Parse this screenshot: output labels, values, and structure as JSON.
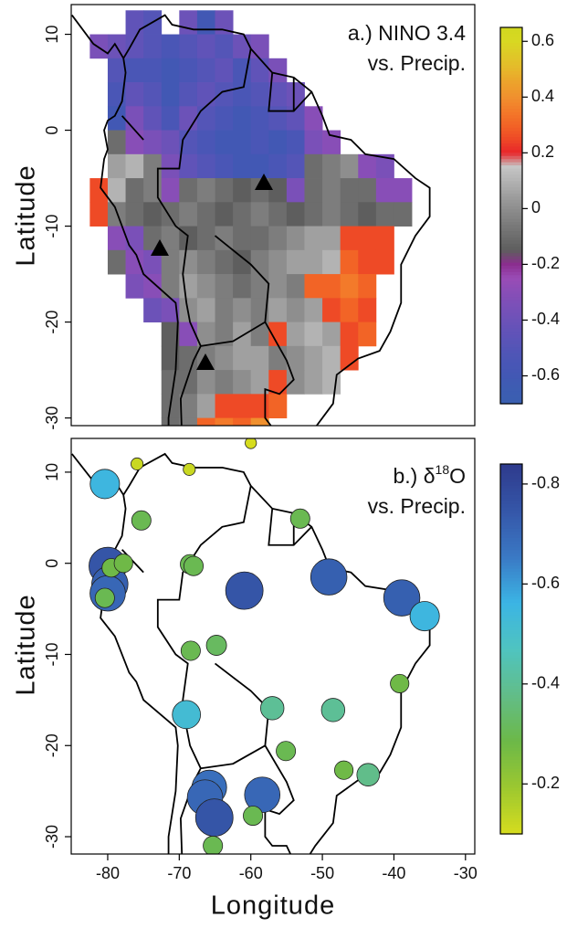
{
  "chart_data": [
    {
      "type": "heatmap",
      "title": "a.) NINO 3.4",
      "subtitle": "vs. Precip.",
      "y_label": "Latitude",
      "x": [
        -81.25,
        -78.75,
        -76.25,
        -73.75,
        -71.25,
        -68.75,
        -66.25,
        -63.75,
        -61.25,
        -58.75,
        -56.25,
        -53.75,
        -51.25,
        -48.75,
        -46.25,
        -43.75,
        -41.25,
        -38.75,
        -36.25
      ],
      "y": [
        11.25,
        8.75,
        6.25,
        3.75,
        1.25,
        -1.25,
        -3.75,
        -6.25,
        -8.75,
        -11.25,
        -13.75,
        -16.25,
        -18.75,
        -21.25,
        -23.75,
        -26.25,
        -28.75,
        -31.25
      ],
      "z": [
        [
          null,
          null,
          -0.45,
          -0.5,
          null,
          -0.4,
          -0.6,
          -0.4,
          null,
          null,
          null,
          null,
          null,
          null,
          null,
          null,
          null,
          null,
          null
        ],
        [
          -0.35,
          -0.4,
          -0.45,
          -0.5,
          -0.55,
          -0.5,
          -0.45,
          -0.5,
          -0.4,
          -0.35,
          null,
          null,
          null,
          null,
          null,
          null,
          null,
          null,
          null
        ],
        [
          null,
          -0.5,
          -0.55,
          -0.55,
          -0.6,
          -0.55,
          -0.5,
          -0.45,
          -0.55,
          -0.45,
          -0.35,
          null,
          null,
          null,
          null,
          null,
          null,
          null,
          null
        ],
        [
          null,
          -0.55,
          -0.45,
          -0.5,
          -0.6,
          -0.5,
          -0.45,
          -0.5,
          -0.55,
          -0.5,
          -0.45,
          -0.4,
          null,
          null,
          null,
          null,
          null,
          null,
          null
        ],
        [
          null,
          -0.6,
          -0.35,
          -0.45,
          -0.55,
          -0.4,
          -0.5,
          -0.55,
          -0.6,
          -0.55,
          -0.5,
          -0.45,
          -0.3,
          null,
          null,
          null,
          null,
          null,
          null
        ],
        [
          null,
          -0.1,
          -0.3,
          -0.35,
          -0.4,
          -0.5,
          -0.55,
          -0.6,
          -0.6,
          -0.55,
          -0.6,
          -0.55,
          -0.35,
          -0.3,
          null,
          null,
          null,
          null,
          null
        ],
        [
          null,
          0.05,
          0.1,
          -0.05,
          -0.35,
          -0.45,
          -0.5,
          -0.55,
          -0.6,
          -0.6,
          -0.55,
          -0.5,
          -0.1,
          -0.05,
          0,
          -0.3,
          -0.35,
          null,
          null
        ],
        [
          0.25,
          0.1,
          -0.1,
          -0.05,
          -0.3,
          -0.1,
          -0.05,
          -0.1,
          -0.15,
          -0.1,
          -0.15,
          -0.35,
          -0.1,
          -0.05,
          -0.1,
          -0.1,
          -0.3,
          -0.3,
          null
        ],
        [
          0.25,
          -0.05,
          -0.1,
          -0.15,
          -0.1,
          -0.05,
          -0.1,
          -0.15,
          -0.1,
          -0.05,
          -0.1,
          -0.15,
          -0.1,
          -0.05,
          -0.1,
          -0.15,
          -0.1,
          -0.1,
          null
        ],
        [
          null,
          -0.3,
          -0.35,
          -0.1,
          -0.05,
          -0.15,
          -0.1,
          -0.05,
          -0.1,
          -0.1,
          -0.05,
          0,
          0.05,
          0.05,
          0.25,
          0.25,
          0.25,
          null,
          null
        ],
        [
          null,
          -0.1,
          -0.3,
          -0.35,
          -0.05,
          0,
          -0.05,
          -0.1,
          -0.15,
          -0.05,
          0,
          0.05,
          0.05,
          0.1,
          0.3,
          0.25,
          0.25,
          null,
          null
        ],
        [
          null,
          null,
          -0.35,
          -0.3,
          -0.05,
          0.05,
          0,
          -0.05,
          -0.1,
          -0.05,
          0,
          -0.05,
          0.3,
          0.3,
          0.35,
          0.3,
          null,
          null,
          null
        ],
        [
          null,
          null,
          null,
          -0.4,
          -0.35,
          0,
          0.05,
          -0.05,
          0,
          -0.05,
          0.05,
          0,
          0.05,
          0.25,
          0.3,
          0.25,
          null,
          null,
          null
        ],
        [
          null,
          null,
          null,
          null,
          -0.15,
          -0.3,
          0,
          -0.05,
          0.05,
          -0.05,
          0.25,
          0.05,
          0.1,
          0.05,
          0.25,
          0.3,
          null,
          null,
          null
        ],
        [
          null,
          null,
          null,
          null,
          -0.15,
          -0.1,
          -0.05,
          0,
          0.05,
          0.05,
          -0.05,
          0,
          0.05,
          0.1,
          0.25,
          null,
          null,
          null,
          null
        ],
        [
          null,
          null,
          null,
          null,
          -0.1,
          -0.1,
          0,
          -0.05,
          0,
          0.05,
          0.25,
          0,
          0.05,
          0.1,
          null,
          null,
          null,
          null,
          null
        ],
        [
          null,
          null,
          null,
          null,
          -0.1,
          -0.05,
          0.05,
          0.25,
          0.25,
          0.25,
          0.3,
          null,
          null,
          null,
          null,
          null,
          null,
          null,
          null
        ],
        [
          null,
          null,
          null,
          null,
          -0.1,
          -0.05,
          0.3,
          0.35,
          0.3,
          0.4,
          null,
          null,
          null,
          null,
          null,
          null,
          null,
          null,
          null
        ]
      ],
      "xlim": [
        -85.1,
        -28.7
      ],
      "ylim": [
        -30.8,
        13.1
      ],
      "yticks": [
        10,
        0,
        -10,
        -20,
        -30
      ],
      "clim": [
        -0.7,
        0.65
      ],
      "cticks": [
        0.6,
        0.4,
        0.2,
        0,
        -0.2,
        -0.4,
        -0.6
      ],
      "colormap": [
        "#3a5fb0",
        "#3d5db2",
        "#4258b4",
        "#4a56b6",
        "#5455b7",
        "#6053b8",
        "#6c52b8",
        "#7a50b8",
        "#884eb7",
        "#9a4cb6",
        "#8b2d8f",
        "#5e5e5e",
        "#6d6d6d",
        "#7d7d7d",
        "#8e8e8e",
        "#a0a0a0",
        "#b3b3b3",
        "#c6c6c6",
        "#e8262a",
        "#ee4a26",
        "#f26426",
        "#f37a2a",
        "#f0902e",
        "#eca22c",
        "#e6b82a",
        "#dfc828",
        "#d8d822",
        "#d0d820"
      ]
    },
    {
      "type": "scatter",
      "title_parts": [
        "b.) δ",
        "18",
        "O"
      ],
      "subtitle": "vs. Precip.",
      "y_label": "Latitude",
      "x_label": "Longitude",
      "x": [
        -80.4,
        -75.9,
        -68.6,
        -60,
        -75.3,
        -53.1,
        -80,
        -79.7,
        -80,
        -80.4,
        -79.5,
        -77.8,
        -68.5,
        -68,
        -60.9,
        -49.1,
        -38.9,
        -35.7,
        -68.4,
        -64.8,
        -39.2,
        -69,
        -57,
        -48.5,
        -55.1,
        -47,
        -43.6,
        -65.8,
        -66.4,
        -65.1,
        -58.4,
        -59.7,
        -65.3
      ],
      "y": [
        8.7,
        10.9,
        10.3,
        13.2,
        4.7,
        4.9,
        -0.3,
        -2.3,
        -3.3,
        -3.8,
        -0.5,
        0,
        -0.1,
        -0.3,
        -3,
        -1.5,
        -3.8,
        -5.8,
        -9.6,
        -9,
        -13.2,
        -16.6,
        -15.9,
        -16.1,
        -20.6,
        -22.7,
        -23.2,
        -24.6,
        -25.7,
        -27.9,
        -25.4,
        -27.7,
        -31
      ],
      "values": [
        -0.55,
        -0.12,
        -0.12,
        -0.1,
        -0.3,
        -0.3,
        -0.75,
        -0.72,
        -0.7,
        -0.3,
        -0.28,
        -0.28,
        -0.3,
        -0.3,
        -0.75,
        -0.72,
        -0.72,
        -0.55,
        -0.3,
        -0.32,
        -0.28,
        -0.52,
        -0.4,
        -0.4,
        -0.3,
        -0.28,
        -0.38,
        -0.68,
        -0.7,
        -0.75,
        -0.7,
        -0.3,
        -0.3
      ],
      "xlim": [
        -85.1,
        -28.7
      ],
      "ylim": [
        -31.9,
        13.7
      ],
      "xticks": [
        -80,
        -70,
        -60,
        -50,
        -40,
        -30
      ],
      "yticks": [
        10,
        0,
        -10,
        -20,
        -30
      ],
      "clim": [
        -0.1,
        -0.84
      ],
      "cticks": [
        -0.8,
        -0.6,
        -0.4,
        -0.2
      ],
      "colormap": [
        "#d6dc1e",
        "#9cc830",
        "#6cb848",
        "#62bd88",
        "#4fc4c0",
        "#3bb4e4",
        "#3a78c4",
        "#3556a8",
        "#2e3a8c"
      ]
    }
  ]
}
